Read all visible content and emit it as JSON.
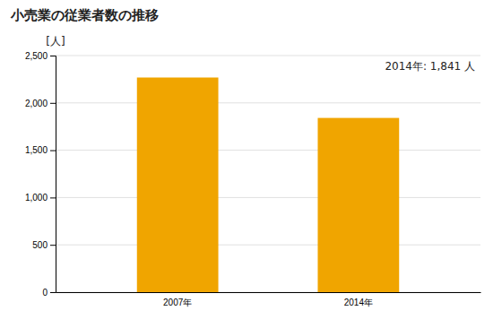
{
  "chart_data": {
    "type": "bar",
    "title": "小売業の従業者数の推移",
    "ylabel": "[人]",
    "categories": [
      "2007年",
      "2014年"
    ],
    "values": [
      2268,
      1841
    ],
    "color": "#F0A500",
    "annotation": "2014年: 1,841 人",
    "ylim": [
      0,
      2500
    ],
    "yticks": [
      0,
      500,
      {
        "value": 1000,
        "label": "1,000"
      },
      {
        "value": 1500,
        "label": "1,500"
      },
      {
        "value": 2000,
        "label": "2,000"
      },
      {
        "value": 2500,
        "label": "2,500"
      }
    ],
    "grid": true
  }
}
